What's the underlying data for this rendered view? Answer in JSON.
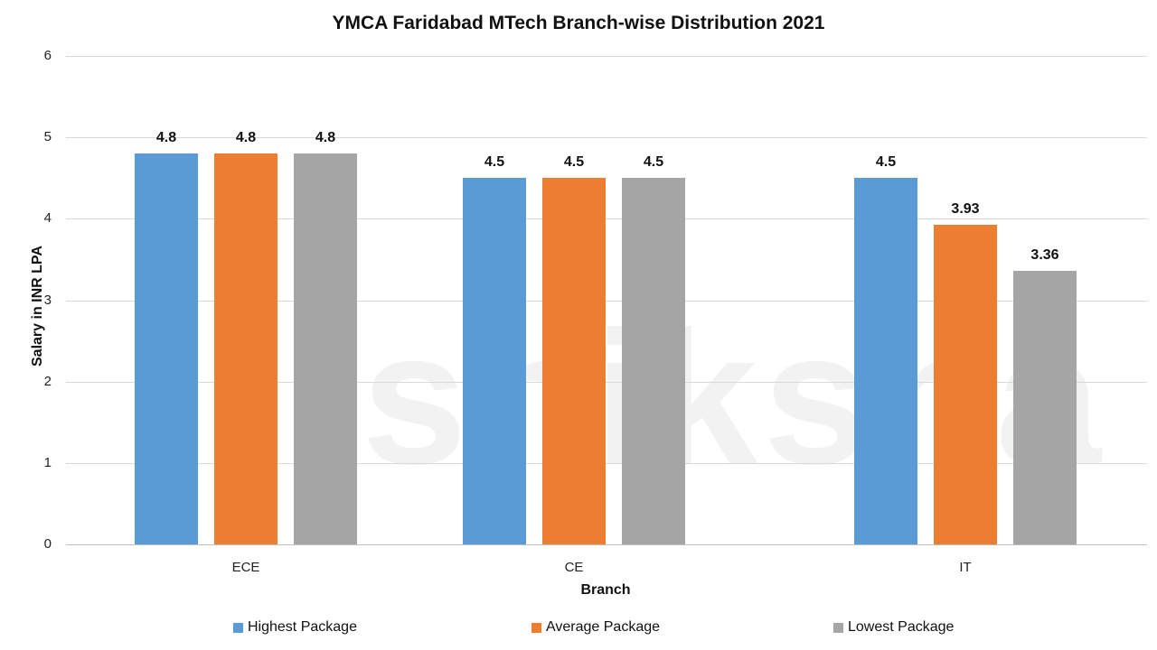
{
  "chart_data": {
    "type": "bar",
    "title": "YMCA Faridabad MTech Branch-wise Distribution 2021",
    "xlabel": "Branch",
    "ylabel": "Salary in INR LPA",
    "ylim": [
      0,
      6
    ],
    "yticks": [
      "0",
      "1",
      "2",
      "3",
      "4",
      "5",
      "6"
    ],
    "grid": true,
    "legend_position": "bottom",
    "categories": [
      "ECE",
      "CE",
      "IT"
    ],
    "series": [
      {
        "name": "Highest Package",
        "color": "#5B9BD5",
        "values": [
          4.8,
          4.5,
          4.5
        ],
        "labels": [
          "4.8",
          "4.5",
          "4.5"
        ]
      },
      {
        "name": "Average Package",
        "color": "#ED7D31",
        "values": [
          4.8,
          4.5,
          3.93
        ],
        "labels": [
          "4.8",
          "4.5",
          "3.93"
        ]
      },
      {
        "name": "Lowest Package",
        "color": "#A5A5A5",
        "values": [
          4.8,
          4.5,
          3.36
        ],
        "labels": [
          "4.8",
          "4.5",
          "3.36"
        ]
      }
    ],
    "watermark": "shiksha"
  }
}
